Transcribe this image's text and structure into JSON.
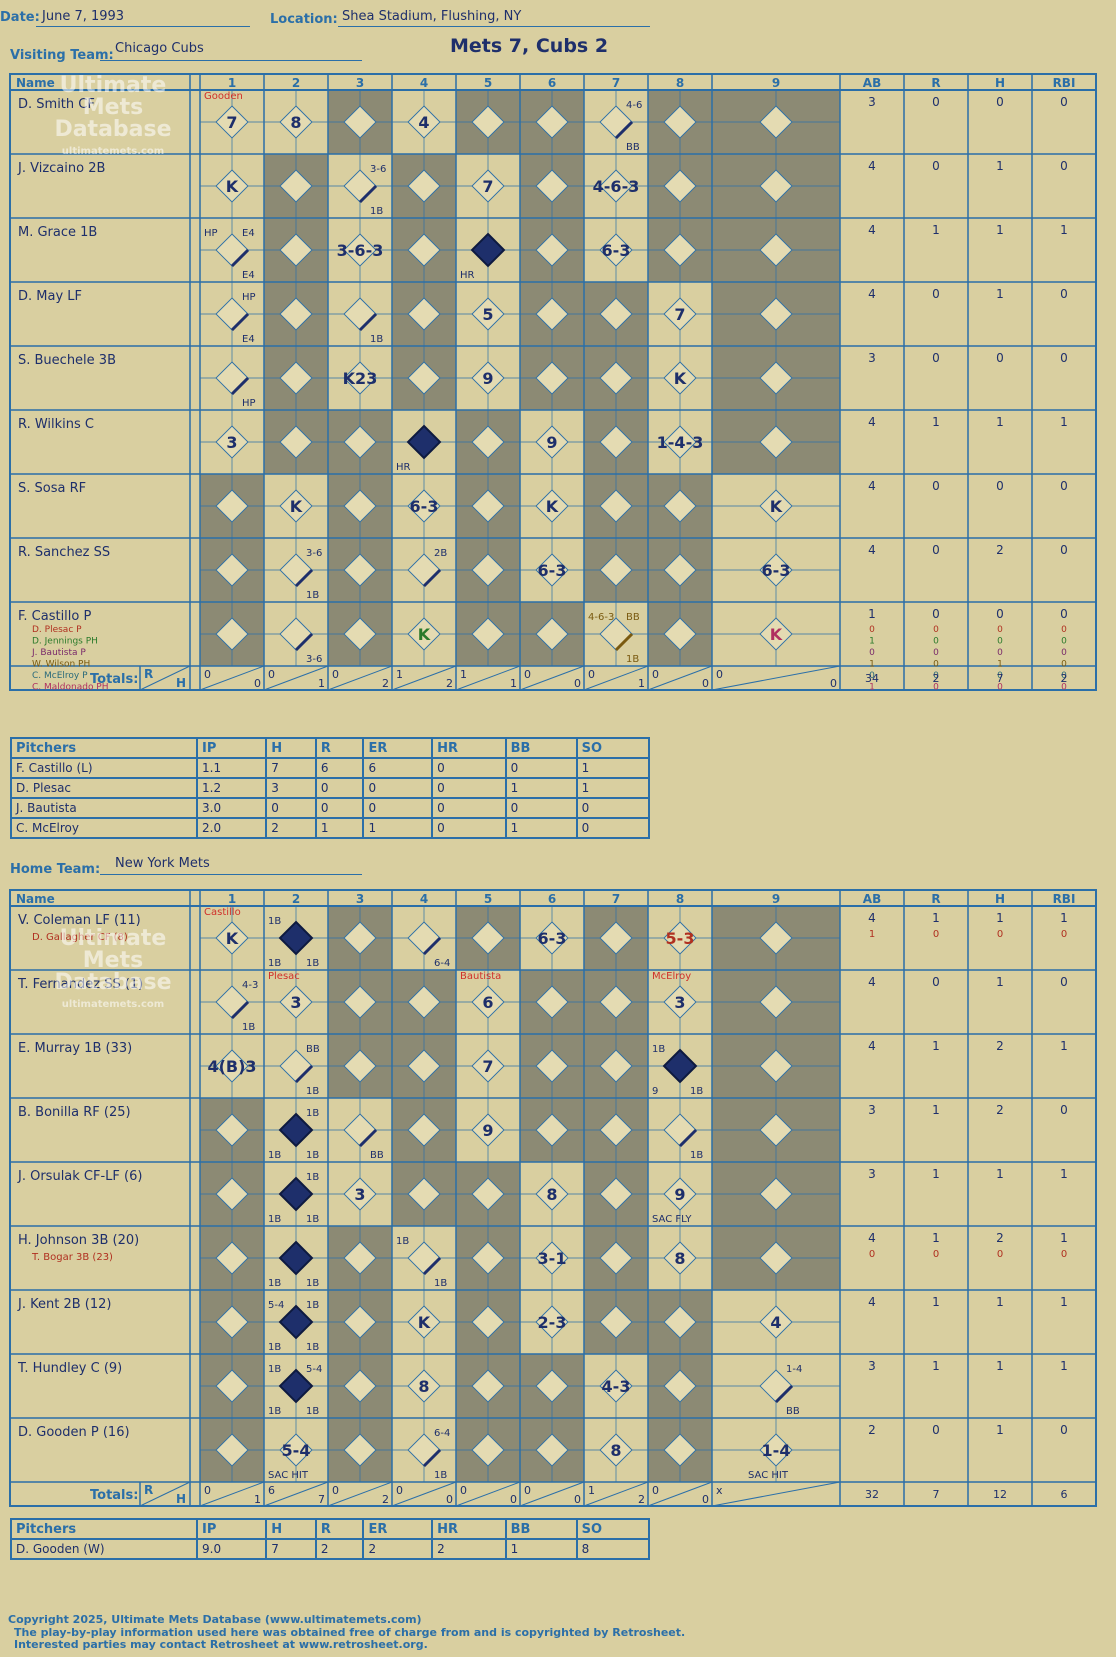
{
  "header": {
    "date_label": "Date:",
    "date": "June 7, 1993",
    "location_label": "Location:",
    "location": "Shea Stadium, Flushing, NY",
    "visiting_label": "Visiting Team:",
    "visiting_team": "Chicago Cubs",
    "home_label": "Home Team:",
    "home_team": "New York Mets",
    "title": "Mets 7, Cubs 2"
  },
  "columns": {
    "name": "Name",
    "innings": [
      "1",
      "2",
      "3",
      "4",
      "5",
      "6",
      "7",
      "8",
      "9"
    ],
    "stats": [
      "AB",
      "R",
      "H",
      "RBI"
    ]
  },
  "totals_label": "Totals:",
  "rh_labels": [
    "R",
    "H"
  ],
  "watermark": {
    "line1": "Ultimate",
    "line2": "Mets",
    "line3": "Database",
    "url": "ultimatemets.com"
  },
  "visiting": {
    "players": [
      {
        "name": "D. Smith CF",
        "stats": [
          "3",
          "0",
          "0",
          "0"
        ]
      },
      {
        "name": "J. Vizcaino 2B",
        "stats": [
          "4",
          "0",
          "1",
          "0"
        ]
      },
      {
        "name": "M. Grace 1B",
        "stats": [
          "4",
          "1",
          "1",
          "1"
        ]
      },
      {
        "name": "D. May LF",
        "stats": [
          "4",
          "0",
          "1",
          "0"
        ]
      },
      {
        "name": "S. Buechele 3B",
        "stats": [
          "3",
          "0",
          "0",
          "0"
        ]
      },
      {
        "name": "R. Wilkins C",
        "stats": [
          "4",
          "1",
          "1",
          "1"
        ]
      },
      {
        "name": "S. Sosa RF",
        "stats": [
          "4",
          "0",
          "0",
          "0"
        ]
      },
      {
        "name": "R. Sanchez SS",
        "stats": [
          "4",
          "0",
          "2",
          "0"
        ]
      },
      {
        "name": "F. Castillo P",
        "stats": [
          "1",
          "0",
          "0",
          "0"
        ]
      }
    ],
    "subs": [
      {
        "name": "D. Plesac P",
        "color": "#b03020",
        "stats": [
          "0",
          "0",
          "0",
          "0"
        ]
      },
      {
        "name": "D. Jennings PH",
        "color": "#2a7a2a",
        "stats": [
          "1",
          "0",
          "0",
          "0"
        ]
      },
      {
        "name": "J. Bautista P",
        "color": "#7a2a6a",
        "stats": [
          "0",
          "0",
          "0",
          "0"
        ]
      },
      {
        "name": "W. Wilson PH",
        "color": "#7a5a10",
        "stats": [
          "1",
          "0",
          "1",
          "0"
        ]
      },
      {
        "name": "C. McElroy P",
        "color": "#2a6a7a",
        "stats": [
          "0",
          "0",
          "0",
          "0"
        ]
      },
      {
        "name": "C. Maldonado PH",
        "color": "#b03060",
        "stats": [
          "1",
          "0",
          "0",
          "0"
        ]
      }
    ],
    "inning_totals": [
      [
        "0",
        "0"
      ],
      [
        "0",
        "1"
      ],
      [
        "0",
        "2"
      ],
      [
        "1",
        "2"
      ],
      [
        "1",
        "1"
      ],
      [
        "0",
        "0"
      ],
      [
        "0",
        "1"
      ],
      [
        "0",
        "0"
      ],
      [
        "0",
        "0"
      ]
    ],
    "game_totals": [
      "34",
      "2",
      "7",
      "2"
    ],
    "plays": [
      {
        "r": 0,
        "i": 0,
        "t": "7",
        "top": "Gooden"
      },
      {
        "r": 0,
        "i": 1,
        "t": "8"
      },
      {
        "r": 0,
        "i": 3,
        "t": "4"
      },
      {
        "r": 0,
        "i": 6,
        "tr": "4-6",
        "br": "BB"
      },
      {
        "r": 1,
        "i": 0,
        "t": "K"
      },
      {
        "r": 1,
        "i": 2,
        "tr": "3-6",
        "br": "1B"
      },
      {
        "r": 1,
        "i": 4,
        "t": "7"
      },
      {
        "r": 1,
        "i": 6,
        "t": "4-6-3"
      },
      {
        "r": 2,
        "i": 0,
        "tl": "HP",
        "tr": "E4",
        "br": "E4"
      },
      {
        "r": 2,
        "i": 2,
        "t": "3-6-3"
      },
      {
        "r": 2,
        "i": 4,
        "bl": "HR",
        "fill": true
      },
      {
        "r": 2,
        "i": 6,
        "t": "6-3"
      },
      {
        "r": 3,
        "i": 0,
        "tr": "HP",
        "br": "E4"
      },
      {
        "r": 3,
        "i": 2,
        "br": "1B"
      },
      {
        "r": 3,
        "i": 4,
        "t": "5"
      },
      {
        "r": 3,
        "i": 7,
        "t": "7"
      },
      {
        "r": 4,
        "i": 0,
        "br": "HP"
      },
      {
        "r": 4,
        "i": 2,
        "t": "K23"
      },
      {
        "r": 4,
        "i": 4,
        "t": "9"
      },
      {
        "r": 4,
        "i": 7,
        "t": "K"
      },
      {
        "r": 5,
        "i": 0,
        "t": "3"
      },
      {
        "r": 5,
        "i": 3,
        "bl": "HR",
        "fill": true
      },
      {
        "r": 5,
        "i": 5,
        "t": "9"
      },
      {
        "r": 5,
        "i": 7,
        "t": "1-4-3"
      },
      {
        "r": 6,
        "i": 1,
        "t": "K"
      },
      {
        "r": 6,
        "i": 3,
        "t": "6-3"
      },
      {
        "r": 6,
        "i": 5,
        "t": "K"
      },
      {
        "r": 6,
        "i": 8,
        "t": "K"
      },
      {
        "r": 7,
        "i": 1,
        "tr": "3-6",
        "br": "1B"
      },
      {
        "r": 7,
        "i": 3,
        "tr": "2B"
      },
      {
        "r": 7,
        "i": 5,
        "t": "6-3"
      },
      {
        "r": 7,
        "i": 8,
        "t": "6-3"
      },
      {
        "r": 8,
        "i": 1,
        "br": "3-6"
      },
      {
        "r": 8,
        "i": 3,
        "t": "K",
        "color": "#2a7a2a"
      },
      {
        "r": 8,
        "i": 6,
        "tl": "4-6-3",
        "tr": "BB",
        "br": "1B",
        "color": "#7a5a10"
      },
      {
        "r": 8,
        "i": 8,
        "t": "K",
        "color": "#b03060"
      }
    ],
    "pitchers": [
      {
        "name": "F. Castillo (L)",
        "vals": [
          "1.1",
          "7",
          "6",
          "6",
          "0",
          "0",
          "1"
        ]
      },
      {
        "name": "D. Plesac",
        "vals": [
          "1.2",
          "3",
          "0",
          "0",
          "0",
          "1",
          "1"
        ]
      },
      {
        "name": "J. Bautista",
        "vals": [
          "3.0",
          "0",
          "0",
          "0",
          "0",
          "0",
          "0"
        ]
      },
      {
        "name": "C. McElroy",
        "vals": [
          "2.0",
          "2",
          "1",
          "1",
          "0",
          "1",
          "0"
        ]
      }
    ]
  },
  "home": {
    "players": [
      {
        "name": "V. Coleman LF (11)",
        "stats": [
          "4",
          "1",
          "1",
          "1"
        ],
        "sub": {
          "name": "D. Gallagher CF (8)",
          "stats": [
            "1",
            "0",
            "0",
            "0"
          ]
        }
      },
      {
        "name": "T. Fernandez SS (1)",
        "stats": [
          "4",
          "0",
          "1",
          "0"
        ]
      },
      {
        "name": "E. Murray 1B (33)",
        "stats": [
          "4",
          "1",
          "2",
          "1"
        ]
      },
      {
        "name": "B. Bonilla RF (25)",
        "stats": [
          "3",
          "1",
          "2",
          "0"
        ]
      },
      {
        "name": "J. Orsulak CF-LF (6)",
        "stats": [
          "3",
          "1",
          "1",
          "1"
        ]
      },
      {
        "name": "H. Johnson 3B (20)",
        "stats": [
          "4",
          "1",
          "2",
          "1"
        ],
        "sub": {
          "name": "T. Bogar 3B (23)",
          "stats": [
            "0",
            "0",
            "0",
            "0"
          ]
        }
      },
      {
        "name": "J. Kent 2B (12)",
        "stats": [
          "4",
          "1",
          "1",
          "1"
        ]
      },
      {
        "name": "T. Hundley C (9)",
        "stats": [
          "3",
          "1",
          "1",
          "1"
        ]
      },
      {
        "name": "D. Gooden P (16)",
        "stats": [
          "2",
          "0",
          "1",
          "0"
        ]
      }
    ],
    "inning_totals": [
      [
        "0",
        "1"
      ],
      [
        "6",
        "7"
      ],
      [
        "0",
        "2"
      ],
      [
        "0",
        "0"
      ],
      [
        "0",
        "0"
      ],
      [
        "0",
        "0"
      ],
      [
        "1",
        "2"
      ],
      [
        "0",
        "0"
      ],
      [
        "x",
        ""
      ]
    ],
    "game_totals": [
      "32",
      "7",
      "12",
      "6"
    ],
    "plays": [
      {
        "r": 0,
        "i": 0,
        "t": "K",
        "top": "Castillo"
      },
      {
        "r": 0,
        "i": 1,
        "tl": "1B",
        "bl": "1B",
        "br": "1B",
        "fill": true
      },
      {
        "r": 0,
        "i": 3,
        "br": "6-4"
      },
      {
        "r": 0,
        "i": 5,
        "t": "6-3"
      },
      {
        "r": 0,
        "i": 7,
        "t": "5-3",
        "color": "#b03020"
      },
      {
        "r": 1,
        "i": 0,
        "tr": "4-3",
        "br": "1B"
      },
      {
        "r": 1,
        "i": 1,
        "t": "3",
        "top": "Plesac"
      },
      {
        "r": 1,
        "i": 4,
        "t": "6",
        "top": "Bautista"
      },
      {
        "r": 1,
        "i": 7,
        "t": "3",
        "top": "McElroy"
      },
      {
        "r": 2,
        "i": 0,
        "t": "4(B)3"
      },
      {
        "r": 2,
        "i": 1,
        "tr": "BB",
        "br": "1B"
      },
      {
        "r": 2,
        "i": 4,
        "t": "7"
      },
      {
        "r": 2,
        "i": 7,
        "tl": "1B",
        "bl": "9",
        "br": "1B",
        "fill": true
      },
      {
        "r": 3,
        "i": 1,
        "tr": "1B",
        "bl": "1B",
        "br": "1B",
        "fill": true
      },
      {
        "r": 3,
        "i": 2,
        "br": "BB"
      },
      {
        "r": 3,
        "i": 4,
        "t": "9"
      },
      {
        "r": 3,
        "i": 7,
        "br": "1B"
      },
      {
        "r": 4,
        "i": 1,
        "tr": "1B",
        "bl": "1B",
        "br": "1B",
        "fill": true
      },
      {
        "r": 4,
        "i": 2,
        "t": "3"
      },
      {
        "r": 4,
        "i": 5,
        "t": "8"
      },
      {
        "r": 4,
        "i": 7,
        "t": "9",
        "bl": "SAC FLY"
      },
      {
        "r": 5,
        "i": 1,
        "bl": "1B",
        "br": "1B",
        "fill": true
      },
      {
        "r": 5,
        "i": 3,
        "tl": "1B",
        "br": "1B"
      },
      {
        "r": 5,
        "i": 5,
        "t": "3-1"
      },
      {
        "r": 5,
        "i": 7,
        "t": "8"
      },
      {
        "r": 6,
        "i": 1,
        "tl": "5-4",
        "tr": "1B",
        "bl": "1B",
        "br": "1B",
        "fill": true
      },
      {
        "r": 6,
        "i": 3,
        "t": "K"
      },
      {
        "r": 6,
        "i": 5,
        "t": "2-3"
      },
      {
        "r": 6,
        "i": 8,
        "t": "4"
      },
      {
        "r": 7,
        "i": 1,
        "tl": "1B",
        "tr": "5-4",
        "bl": "1B",
        "br": "1B",
        "fill": true
      },
      {
        "r": 7,
        "i": 3,
        "t": "8"
      },
      {
        "r": 7,
        "i": 6,
        "t": "4-3"
      },
      {
        "r": 7,
        "i": 8,
        "tr": "1-4",
        "br": "BB"
      },
      {
        "r": 8,
        "i": 1,
        "t": "5-4",
        "bl": "SAC HIT"
      },
      {
        "r": 8,
        "i": 3,
        "tr": "6-4",
        "br": "1B"
      },
      {
        "r": 8,
        "i": 6,
        "t": "8"
      },
      {
        "r": 8,
        "i": 8,
        "t": "1-4",
        "bl": "SAC HIT"
      }
    ],
    "pitchers": [
      {
        "name": "D. Gooden (W)",
        "vals": [
          "9.0",
          "7",
          "2",
          "2",
          "2",
          "1",
          "8"
        ]
      }
    ]
  },
  "pitcher_columns": [
    "Pitchers",
    "IP",
    "H",
    "R",
    "ER",
    "HR",
    "BB",
    "SO"
  ],
  "footer": [
    "Copyright 2025, Ultimate Mets Database (www.ultimatemets.com)",
    "The play-by-play information used here was obtained free of charge from and is copyrighted by Retrosheet.",
    "Interested parties may contact Retrosheet at www.retrosheet.org."
  ],
  "colors": {
    "grid": "#2b6fa8",
    "paper": "#d9cfa0",
    "shade": "#8c8a74",
    "ink": "#1e2f6b",
    "pencil_red": "#d0302a"
  }
}
